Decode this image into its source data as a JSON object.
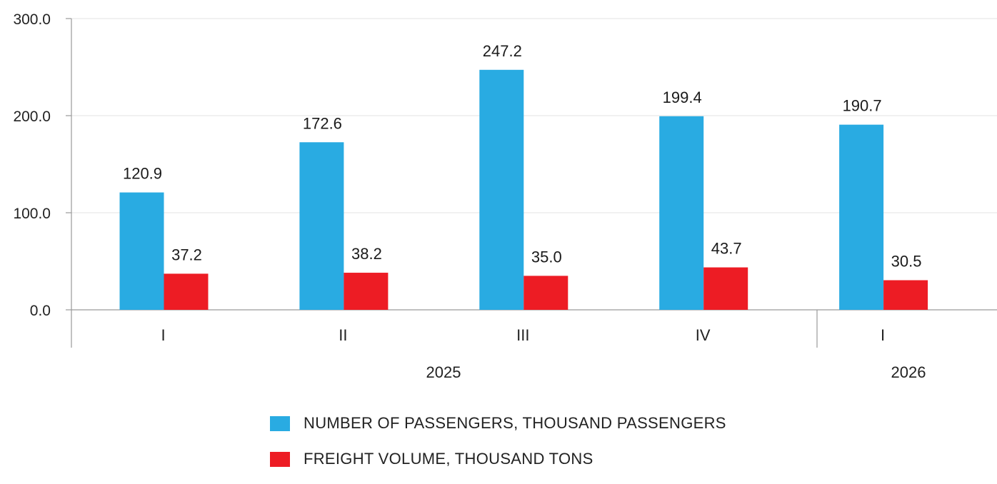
{
  "chart_data": {
    "type": "bar",
    "categories": [
      "I",
      "II",
      "III",
      "IV",
      "I"
    ],
    "groups": [
      {
        "label": "2025",
        "categories": [
          0,
          1,
          2,
          3
        ]
      },
      {
        "label": "2026",
        "categories": [
          4
        ]
      }
    ],
    "series": [
      {
        "name": "NUMBER OF PASSENGERS, THOUSAND PASSENGERS",
        "color": "#29abe2",
        "values": [
          120.9,
          172.6,
          247.2,
          199.4,
          190.7
        ]
      },
      {
        "name": "FREIGHT VOLUME, THOUSAND TONS",
        "color": "#ed1c24",
        "values": [
          37.2,
          38.2,
          35.0,
          43.7,
          30.5
        ]
      }
    ],
    "yticks": [
      "0.0",
      "100.0",
      "200.0",
      "300.0"
    ],
    "ylim": [
      0,
      300
    ],
    "grid": true,
    "legend_position": "bottom",
    "title": "",
    "xlabel": "",
    "ylabel": ""
  }
}
